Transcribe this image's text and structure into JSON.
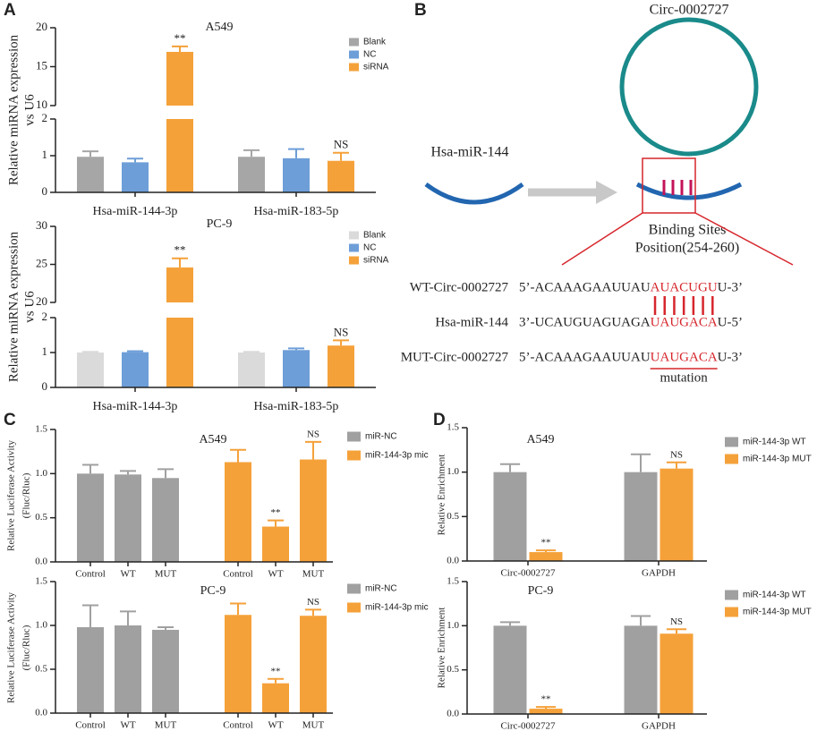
{
  "panel_labels": [
    "A",
    "B",
    "C",
    "D"
  ],
  "chart_data": [
    {
      "type": "bar",
      "title": "A549",
      "ylabel": [
        "Relative miRNA expression",
        "vs U6"
      ],
      "group_by": "category",
      "categories": [
        "Hsa-miR-144-3p",
        "Hsa-miR-183-5p"
      ],
      "series": [
        {
          "name": "Blank",
          "color": "#a6a6a6",
          "values": [
            0.97,
            0.97
          ],
          "errors": [
            0.15,
            0.18
          ]
        },
        {
          "name": "NC",
          "color": "#6d9ed8",
          "values": [
            0.82,
            0.93
          ],
          "errors": [
            0.1,
            0.25
          ]
        },
        {
          "name": "siRNA",
          "color": "#f5a13a",
          "values": [
            16.9,
            0.86
          ],
          "errors": [
            0.7,
            0.22
          ],
          "annotations": [
            "**",
            "NS"
          ]
        }
      ],
      "ylim": [
        0,
        20
      ],
      "ybreak": [
        2,
        10
      ],
      "yticks": [
        0,
        1,
        2,
        10,
        15,
        20
      ]
    },
    {
      "type": "bar",
      "title": "PC-9",
      "ylabel": [
        "Relative miRNA expression",
        "vs U6"
      ],
      "group_by": "category",
      "categories": [
        "Hsa-miR-144-3p",
        "Hsa-miR-183-5p"
      ],
      "series": [
        {
          "name": "Blank",
          "color": "#dadada",
          "values": [
            1.0,
            1.0
          ],
          "errors": [
            0.02,
            0.02
          ]
        },
        {
          "name": "NC",
          "color": "#6d9ed8",
          "values": [
            1.01,
            1.07
          ],
          "errors": [
            0.03,
            0.05
          ]
        },
        {
          "name": "siRNA",
          "color": "#f5a13a",
          "values": [
            24.6,
            1.2
          ],
          "errors": [
            1.2,
            0.15
          ],
          "annotations": [
            "**",
            "NS"
          ]
        }
      ],
      "ylim": [
        0,
        30
      ],
      "ybreak": [
        2,
        20
      ],
      "yticks": [
        0,
        1,
        2,
        20,
        25,
        30
      ]
    },
    {
      "type": "bar",
      "title": "A549",
      "ylabel": [
        "Relative Luciferase Activity",
        "(Fluc/Rluc)"
      ],
      "group_by": "series",
      "categories": [
        "Control",
        "WT",
        "MUT"
      ],
      "series": [
        {
          "name": "miR-NC",
          "color": "#a0a0a0",
          "values": [
            1.0,
            0.99,
            0.95
          ],
          "errors": [
            0.1,
            0.04,
            0.1
          ]
        },
        {
          "name": "miR-144-3p mic",
          "color": "#f5a13a",
          "values": [
            1.13,
            0.4,
            1.16
          ],
          "errors": [
            0.14,
            0.07,
            0.2
          ],
          "annotations": [
            null,
            "**",
            "NS"
          ]
        }
      ],
      "ylim": [
        0,
        1.5
      ],
      "yticks": [
        {
          "value": 0,
          "label": "0.0"
        },
        0.5,
        {
          "value": 1,
          "label": "1.0"
        },
        1.5
      ]
    },
    {
      "type": "bar",
      "title": "PC-9",
      "ylabel": [
        "Relative Luciferase Activity",
        "(Fluc/Rluc)"
      ],
      "group_by": "series",
      "categories": [
        "Control",
        "WT",
        "MUT"
      ],
      "series": [
        {
          "name": "miR-NC",
          "color": "#a0a0a0",
          "values": [
            0.98,
            1.0,
            0.95
          ],
          "errors": [
            0.25,
            0.16,
            0.03
          ]
        },
        {
          "name": "miR-144-3p mic",
          "color": "#f5a13a",
          "values": [
            1.12,
            0.34,
            1.11
          ],
          "errors": [
            0.13,
            0.05,
            0.07
          ],
          "annotations": [
            null,
            "**",
            "NS"
          ]
        }
      ],
      "ylim": [
        0,
        1.5
      ],
      "yticks": [
        {
          "value": 0,
          "label": "0.0"
        },
        0.5,
        {
          "value": 1,
          "label": "1.0"
        },
        1.5
      ]
    },
    {
      "type": "bar",
      "title": "A549",
      "ylabel": [
        "Relative Enrichment"
      ],
      "group_by": "category",
      "categories": [
        "Circ-0002727",
        "GAPDH"
      ],
      "series": [
        {
          "name": "miR-144-3p WT",
          "color": "#a0a0a0",
          "values": [
            1.0,
            1.0
          ],
          "errors": [
            0.09,
            0.2
          ]
        },
        {
          "name": "miR-144-3p MUT",
          "color": "#f5a13a",
          "values": [
            0.1,
            1.04
          ],
          "errors": [
            0.02,
            0.07
          ],
          "annotations": [
            "**",
            "NS"
          ]
        }
      ],
      "ylim": [
        0,
        1.5
      ],
      "yticks": [
        {
          "value": 0,
          "label": "0.0"
        },
        0.5,
        {
          "value": 1,
          "label": "1.0"
        },
        1.5
      ]
    },
    {
      "type": "bar",
      "title": "PC-9",
      "ylabel": [
        "Relative Enrichment"
      ],
      "group_by": "category",
      "categories": [
        "Circ-0002727",
        "GAPDH"
      ],
      "series": [
        {
          "name": "miR-144-3p WT",
          "color": "#a0a0a0",
          "values": [
            1.0,
            1.0
          ],
          "errors": [
            0.04,
            0.11
          ]
        },
        {
          "name": "miR-144-3p MUT",
          "color": "#f5a13a",
          "values": [
            0.06,
            0.91
          ],
          "errors": [
            0.02,
            0.05
          ],
          "annotations": [
            "**",
            "NS"
          ]
        }
      ],
      "ylim": [
        0,
        1.5
      ],
      "yticks": [
        {
          "value": 0,
          "label": "0.0"
        },
        0.5,
        {
          "value": 1,
          "label": "1.0"
        },
        1.5
      ]
    }
  ],
  "diagram": {
    "circle_label": "Circ-0002727",
    "mirna_label": "Hsa-miR-144",
    "binding_label": [
      "Binding Sites",
      "Position(254-260)"
    ],
    "sequences": [
      {
        "name": "WT-Circ-0002727",
        "prefix": "5’-ACAAAGAAUUAU",
        "site": "AUACUGU",
        "suffix": "U-3’"
      },
      {
        "name": "Hsa-miR-144",
        "prefix": "3’-UCAUGUAGUAGA",
        "site": "UAUGACA",
        "suffix": "U-5’"
      },
      {
        "name": "MUT-Circ-0002727",
        "prefix": "5’-ACAAAGAAUUAU",
        "site": "UAUGACA",
        "suffix": "U-3’"
      }
    ],
    "mutation_label": "mutation"
  }
}
